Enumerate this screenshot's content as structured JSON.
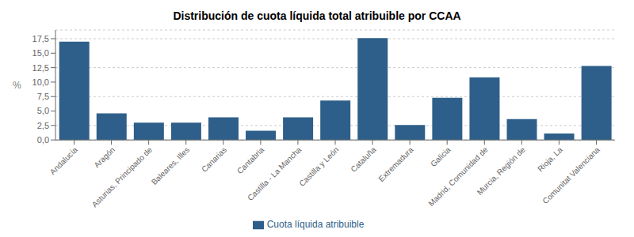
{
  "chart_data": {
    "type": "bar",
    "title": "Distribución de cuota líquida total atribuible por CCAA",
    "categories": [
      "Andalucía",
      "Aragón",
      "Asturias, Principado de",
      "Baleares, Illes",
      "Canarias",
      "Cantabria",
      "Castilla - La Mancha",
      "Castilla y León",
      "Cataluña",
      "Extremadura",
      "Galicia",
      "Madrid, Comunidad de",
      "Murcia, Región de",
      "Rioja, La",
      "Comunitat Valenciana"
    ],
    "series": [
      {
        "name": "Cuota líquida atribuible",
        "color": "#2e5f8a",
        "values": [
          17.0,
          4.6,
          3.0,
          3.0,
          3.9,
          1.6,
          3.9,
          6.8,
          17.6,
          2.6,
          7.3,
          10.8,
          3.6,
          1.1,
          12.8
        ]
      }
    ],
    "ylabel": "%",
    "ylim": [
      0,
      19.0
    ],
    "yticks": [
      {
        "value": 0.0,
        "label": "0,0"
      },
      {
        "value": 2.5,
        "label": "2,5"
      },
      {
        "value": 5.0,
        "label": "5,0"
      },
      {
        "value": 7.5,
        "label": "7,5"
      },
      {
        "value": 10.0,
        "label": "10,0"
      },
      {
        "value": 12.5,
        "label": "12,5"
      },
      {
        "value": 15.0,
        "label": "15,0"
      },
      {
        "value": 17.5,
        "label": "17,5"
      }
    ],
    "grid": true,
    "legend": "bottom"
  }
}
